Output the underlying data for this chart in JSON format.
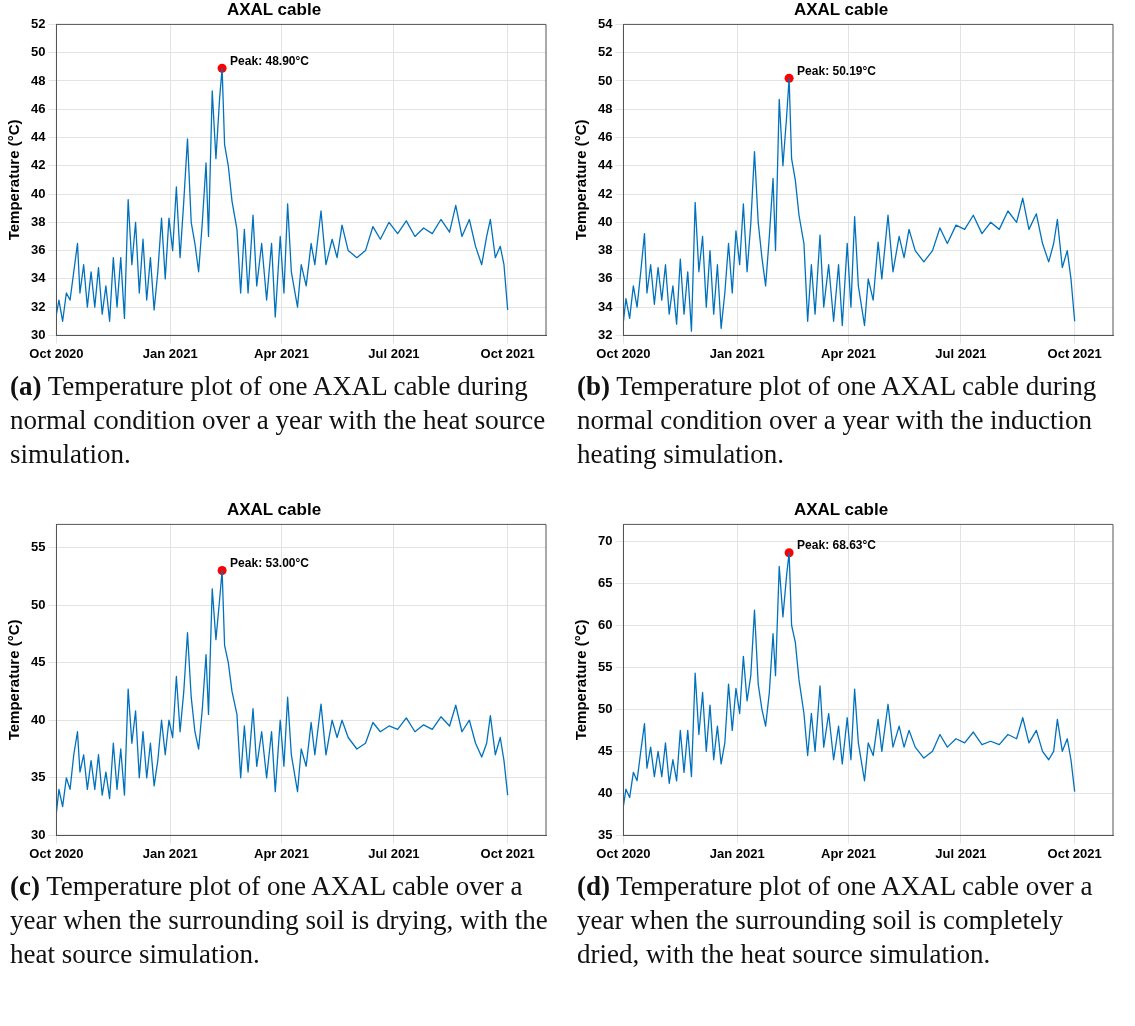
{
  "chart_data": [
    {
      "type": "line",
      "title": "AXAL cable",
      "ylabel": "Temperature (°C)",
      "grid": true,
      "legend": false,
      "xlim": [
        "2020-10-01",
        "2021-11-01"
      ],
      "xticks": [
        {
          "value": "2020-10-01",
          "label": "Oct 2020"
        },
        {
          "value": "2021-01-01",
          "label": "Jan 2021"
        },
        {
          "value": "2021-04-01",
          "label": "Apr 2021"
        },
        {
          "value": "2021-07-01",
          "label": "Jul 2021"
        },
        {
          "value": "2021-10-01",
          "label": "Oct 2021"
        }
      ],
      "ylim": [
        30,
        52
      ],
      "yticks": [
        30,
        32,
        34,
        36,
        38,
        40,
        42,
        44,
        46,
        48,
        50,
        52
      ],
      "x": [
        "2020-10-01",
        "2020-10-03",
        "2020-10-06",
        "2020-10-09",
        "2020-10-12",
        "2020-10-15",
        "2020-10-18",
        "2020-10-20",
        "2020-10-23",
        "2020-10-26",
        "2020-10-29",
        "2020-11-01",
        "2020-11-04",
        "2020-11-07",
        "2020-11-10",
        "2020-11-13",
        "2020-11-16",
        "2020-11-19",
        "2020-11-22",
        "2020-11-25",
        "2020-11-28",
        "2020-12-01",
        "2020-12-04",
        "2020-12-07",
        "2020-12-10",
        "2020-12-13",
        "2020-12-16",
        "2020-12-19",
        "2020-12-22",
        "2020-12-25",
        "2020-12-28",
        "2020-12-31",
        "2021-01-03",
        "2021-01-06",
        "2021-01-09",
        "2021-01-12",
        "2021-01-15",
        "2021-01-18",
        "2021-01-21",
        "2021-01-24",
        "2021-01-27",
        "2021-01-30",
        "2021-02-01",
        "2021-02-04",
        "2021-02-07",
        "2021-02-10",
        "2021-02-12",
        "2021-02-14",
        "2021-02-17",
        "2021-02-20",
        "2021-02-24",
        "2021-02-27",
        "2021-03-02",
        "2021-03-05",
        "2021-03-09",
        "2021-03-12",
        "2021-03-16",
        "2021-03-20",
        "2021-03-24",
        "2021-03-27",
        "2021-03-31",
        "2021-04-03",
        "2021-04-06",
        "2021-04-09",
        "2021-04-14",
        "2021-04-17",
        "2021-04-21",
        "2021-04-25",
        "2021-04-28",
        "2021-05-03",
        "2021-05-07",
        "2021-05-12",
        "2021-05-16",
        "2021-05-20",
        "2021-05-25",
        "2021-06-01",
        "2021-06-08",
        "2021-06-14",
        "2021-06-20",
        "2021-06-27",
        "2021-07-04",
        "2021-07-11",
        "2021-07-18",
        "2021-07-25",
        "2021-08-01",
        "2021-08-08",
        "2021-08-15",
        "2021-08-20",
        "2021-08-25",
        "2021-08-31",
        "2021-09-05",
        "2021-09-10",
        "2021-09-14",
        "2021-09-17",
        "2021-09-21",
        "2021-09-25",
        "2021-09-28",
        "2021-10-01"
      ],
      "series": [
        {
          "type": "line",
          "marker": "none",
          "color": "#0072bd",
          "values": [
            31.5,
            32.5,
            31,
            33,
            32.5,
            34.5,
            36.5,
            33,
            35,
            32,
            34.5,
            32,
            34.8,
            31.5,
            33.5,
            31,
            35.5,
            32,
            35.5,
            31.2,
            39.6,
            35,
            38,
            33,
            36.8,
            32.5,
            35.5,
            31.8,
            34.5,
            38.3,
            34,
            38.3,
            36,
            40.5,
            35.5,
            39.5,
            43.9,
            38,
            36.5,
            34.5,
            38,
            42.2,
            37,
            47.3,
            42.5,
            46.8,
            48.9,
            43.5,
            42,
            39.5,
            37.5,
            33,
            37.5,
            33,
            38.5,
            33.5,
            36.5,
            32.5,
            36.5,
            31.3,
            37,
            33,
            39.3,
            34.5,
            32,
            35,
            33.5,
            36.5,
            35,
            38.8,
            35,
            36.8,
            35.5,
            37.8,
            36,
            35.5,
            36,
            37.7,
            36.8,
            38,
            37.2,
            38.1,
            37,
            37.6,
            37.2,
            38.2,
            37.3,
            39.2,
            37,
            38.2,
            36.3,
            35,
            37,
            38.2,
            35.5,
            36.3,
            35,
            31.8
          ]
        },
        {
          "type": "scatter",
          "marker": "circle",
          "color": "#ff0000",
          "x": [
            "2021-02-12"
          ],
          "values": [
            48.9
          ]
        }
      ],
      "annotations": [
        {
          "text": "Peak: 48.90°C",
          "x": "2021-02-12",
          "y": 48.9
        },
        "(a) Temperature plot of one AXAL cable during normal condition over a year with the heat source simulation."
      ]
    },
    {
      "type": "line",
      "title": "AXAL cable",
      "ylabel": "Temperature (°C)",
      "grid": true,
      "legend": false,
      "xlim": [
        "2020-10-01",
        "2021-11-01"
      ],
      "xticks": [
        {
          "value": "2020-10-01",
          "label": "Oct 2020"
        },
        {
          "value": "2021-01-01",
          "label": "Jan 2021"
        },
        {
          "value": "2021-04-01",
          "label": "Apr 2021"
        },
        {
          "value": "2021-07-01",
          "label": "Jul 2021"
        },
        {
          "value": "2021-10-01",
          "label": "Oct 2021"
        }
      ],
      "ylim": [
        32,
        54
      ],
      "yticks": [
        32,
        34,
        36,
        38,
        40,
        42,
        44,
        46,
        48,
        50,
        52,
        54
      ],
      "x": [
        "2020-10-01",
        "2020-10-03",
        "2020-10-06",
        "2020-10-09",
        "2020-10-12",
        "2020-10-15",
        "2020-10-18",
        "2020-10-20",
        "2020-10-23",
        "2020-10-26",
        "2020-10-29",
        "2020-11-01",
        "2020-11-04",
        "2020-11-07",
        "2020-11-10",
        "2020-11-13",
        "2020-11-16",
        "2020-11-19",
        "2020-11-22",
        "2020-11-25",
        "2020-11-28",
        "2020-12-01",
        "2020-12-04",
        "2020-12-07",
        "2020-12-10",
        "2020-12-13",
        "2020-12-16",
        "2020-12-19",
        "2020-12-22",
        "2020-12-25",
        "2020-12-28",
        "2020-12-31",
        "2021-01-03",
        "2021-01-06",
        "2021-01-09",
        "2021-01-12",
        "2021-01-15",
        "2021-01-18",
        "2021-01-21",
        "2021-01-24",
        "2021-01-27",
        "2021-01-30",
        "2021-02-01",
        "2021-02-04",
        "2021-02-07",
        "2021-02-10",
        "2021-02-12",
        "2021-02-14",
        "2021-02-17",
        "2021-02-20",
        "2021-02-24",
        "2021-02-27",
        "2021-03-02",
        "2021-03-05",
        "2021-03-09",
        "2021-03-12",
        "2021-03-16",
        "2021-03-20",
        "2021-03-24",
        "2021-03-27",
        "2021-03-31",
        "2021-04-03",
        "2021-04-06",
        "2021-04-09",
        "2021-04-14",
        "2021-04-17",
        "2021-04-21",
        "2021-04-25",
        "2021-04-28",
        "2021-05-03",
        "2021-05-07",
        "2021-05-12",
        "2021-05-16",
        "2021-05-20",
        "2021-05-25",
        "2021-06-01",
        "2021-06-08",
        "2021-06-14",
        "2021-06-20",
        "2021-06-27",
        "2021-07-04",
        "2021-07-11",
        "2021-07-18",
        "2021-07-25",
        "2021-08-01",
        "2021-08-08",
        "2021-08-15",
        "2021-08-20",
        "2021-08-25",
        "2021-08-31",
        "2021-09-05",
        "2021-09-10",
        "2021-09-14",
        "2021-09-17",
        "2021-09-21",
        "2021-09-25",
        "2021-09-28",
        "2021-10-01"
      ],
      "series": [
        {
          "type": "line",
          "marker": "none",
          "color": "#0072bd",
          "values": [
            33,
            34.6,
            33.2,
            35.5,
            34,
            36.5,
            39.2,
            35,
            37,
            34.2,
            36.8,
            34.5,
            37,
            33.5,
            35.5,
            32.8,
            37.4,
            33.5,
            36.5,
            32.3,
            41.4,
            36.5,
            39,
            34,
            38,
            33.5,
            37,
            32.5,
            35,
            38.5,
            35,
            39.4,
            37,
            41.3,
            36.5,
            39.9,
            45,
            40,
            37.5,
            35.5,
            39,
            43.1,
            38,
            48.7,
            44,
            47.5,
            50.19,
            44.5,
            43,
            40.5,
            38.5,
            33,
            37,
            33.5,
            39.1,
            34,
            37,
            33,
            37,
            32.7,
            38.5,
            34,
            40.4,
            35.5,
            32.7,
            36,
            34.5,
            38.6,
            36,
            40.5,
            36.5,
            39,
            37.5,
            39.5,
            38,
            37.2,
            38,
            39.6,
            38.5,
            39.8,
            39.5,
            40.5,
            39.2,
            40,
            39.5,
            40.8,
            40,
            41.7,
            39.5,
            40.6,
            38.5,
            37.2,
            38.5,
            40.2,
            36.8,
            38,
            36,
            33
          ]
        },
        {
          "type": "scatter",
          "marker": "circle",
          "color": "#ff0000",
          "x": [
            "2021-02-12"
          ],
          "values": [
            50.19
          ]
        }
      ],
      "annotations": [
        {
          "text": "Peak: 50.19°C",
          "x": "2021-02-12",
          "y": 50.19
        },
        "(b) Temperature plot of one AXAL cable during normal condition over a year with the induction heating simulation."
      ]
    },
    {
      "type": "line",
      "title": "AXAL cable",
      "ylabel": "Temperature (°C)",
      "grid": true,
      "legend": false,
      "xlim": [
        "2020-10-01",
        "2021-11-01"
      ],
      "xticks": [
        {
          "value": "2020-10-01",
          "label": "Oct 2020"
        },
        {
          "value": "2021-01-01",
          "label": "Jan 2021"
        },
        {
          "value": "2021-04-01",
          "label": "Apr 2021"
        },
        {
          "value": "2021-07-01",
          "label": "Jul 2021"
        },
        {
          "value": "2021-10-01",
          "label": "Oct 2021"
        }
      ],
      "ylim": [
        30,
        57
      ],
      "yticks": [
        30,
        35,
        40,
        45,
        50,
        55
      ],
      "x": [
        "2020-10-01",
        "2020-10-03",
        "2020-10-06",
        "2020-10-09",
        "2020-10-12",
        "2020-10-15",
        "2020-10-18",
        "2020-10-20",
        "2020-10-23",
        "2020-10-26",
        "2020-10-29",
        "2020-11-01",
        "2020-11-04",
        "2020-11-07",
        "2020-11-10",
        "2020-11-13",
        "2020-11-16",
        "2020-11-19",
        "2020-11-22",
        "2020-11-25",
        "2020-11-28",
        "2020-12-01",
        "2020-12-04",
        "2020-12-07",
        "2020-12-10",
        "2020-12-13",
        "2020-12-16",
        "2020-12-19",
        "2020-12-22",
        "2020-12-25",
        "2020-12-28",
        "2020-12-31",
        "2021-01-03",
        "2021-01-06",
        "2021-01-09",
        "2021-01-12",
        "2021-01-15",
        "2021-01-18",
        "2021-01-21",
        "2021-01-24",
        "2021-01-27",
        "2021-01-30",
        "2021-02-01",
        "2021-02-04",
        "2021-02-07",
        "2021-02-10",
        "2021-02-12",
        "2021-02-14",
        "2021-02-17",
        "2021-02-20",
        "2021-02-24",
        "2021-02-27",
        "2021-03-02",
        "2021-03-05",
        "2021-03-09",
        "2021-03-12",
        "2021-03-16",
        "2021-03-20",
        "2021-03-24",
        "2021-03-27",
        "2021-03-31",
        "2021-04-03",
        "2021-04-06",
        "2021-04-09",
        "2021-04-14",
        "2021-04-17",
        "2021-04-21",
        "2021-04-25",
        "2021-04-28",
        "2021-05-03",
        "2021-05-07",
        "2021-05-12",
        "2021-05-16",
        "2021-05-20",
        "2021-05-25",
        "2021-06-01",
        "2021-06-08",
        "2021-06-14",
        "2021-06-20",
        "2021-06-27",
        "2021-07-04",
        "2021-07-11",
        "2021-07-18",
        "2021-07-25",
        "2021-08-01",
        "2021-08-08",
        "2021-08-15",
        "2021-08-20",
        "2021-08-25",
        "2021-08-31",
        "2021-09-05",
        "2021-09-10",
        "2021-09-14",
        "2021-09-17",
        "2021-09-21",
        "2021-09-25",
        "2021-09-28",
        "2021-10-01"
      ],
      "series": [
        {
          "type": "line",
          "marker": "none",
          "color": "#0072bd",
          "values": [
            32,
            34,
            32.5,
            35,
            34,
            37,
            39,
            35.5,
            37,
            34,
            36.5,
            34,
            37,
            33.5,
            35.5,
            33.2,
            38,
            34,
            37.5,
            33.5,
            42.7,
            38,
            40.8,
            35,
            39,
            35,
            38,
            34.3,
            36.5,
            40,
            37,
            40,
            38.5,
            43.8,
            39,
            42.5,
            47.6,
            42,
            39,
            37.5,
            41,
            45.7,
            40.5,
            51.4,
            47,
            50.5,
            53,
            46.5,
            45,
            42.5,
            40.5,
            35,
            39.5,
            35.5,
            41,
            36,
            39,
            35,
            39,
            33.8,
            40,
            36,
            42,
            37,
            33.8,
            37.5,
            36,
            39.8,
            37,
            41.4,
            37,
            40,
            38.5,
            40,
            38.5,
            37.5,
            38,
            39.8,
            39,
            39.5,
            39.2,
            40.2,
            39,
            39.6,
            39.2,
            40.3,
            39.5,
            41.3,
            39,
            40,
            38,
            36.8,
            38,
            40.4,
            37,
            38.5,
            36.5,
            33.5
          ]
        },
        {
          "type": "scatter",
          "marker": "circle",
          "color": "#ff0000",
          "x": [
            "2021-02-12"
          ],
          "values": [
            53
          ]
        }
      ],
      "annotations": [
        {
          "text": "Peak: 53.00°C",
          "x": "2021-02-12",
          "y": 53
        },
        "(c) Temperature plot of one AXAL cable over a year when the surrounding soil is drying, with the heat source simulation."
      ]
    },
    {
      "type": "line",
      "title": "AXAL cable",
      "ylabel": "Temperature (°C)",
      "grid": true,
      "legend": false,
      "xlim": [
        "2020-10-01",
        "2021-11-01"
      ],
      "xticks": [
        {
          "value": "2020-10-01",
          "label": "Oct 2020"
        },
        {
          "value": "2021-01-01",
          "label": "Jan 2021"
        },
        {
          "value": "2021-04-01",
          "label": "Apr 2021"
        },
        {
          "value": "2021-07-01",
          "label": "Jul 2021"
        },
        {
          "value": "2021-10-01",
          "label": "Oct 2021"
        }
      ],
      "ylim": [
        35,
        72
      ],
      "yticks": [
        35,
        40,
        45,
        50,
        55,
        60,
        65,
        70
      ],
      "x": [
        "2020-10-01",
        "2020-10-03",
        "2020-10-06",
        "2020-10-09",
        "2020-10-12",
        "2020-10-15",
        "2020-10-18",
        "2020-10-20",
        "2020-10-23",
        "2020-10-26",
        "2020-10-29",
        "2020-11-01",
        "2020-11-04",
        "2020-11-07",
        "2020-11-10",
        "2020-11-13",
        "2020-11-16",
        "2020-11-19",
        "2020-11-22",
        "2020-11-25",
        "2020-11-28",
        "2020-12-01",
        "2020-12-04",
        "2020-12-07",
        "2020-12-10",
        "2020-12-13",
        "2020-12-16",
        "2020-12-19",
        "2020-12-22",
        "2020-12-25",
        "2020-12-28",
        "2020-12-31",
        "2021-01-03",
        "2021-01-06",
        "2021-01-09",
        "2021-01-12",
        "2021-01-15",
        "2021-01-18",
        "2021-01-21",
        "2021-01-24",
        "2021-01-27",
        "2021-01-30",
        "2021-02-01",
        "2021-02-04",
        "2021-02-07",
        "2021-02-10",
        "2021-02-12",
        "2021-02-14",
        "2021-02-17",
        "2021-02-20",
        "2021-02-24",
        "2021-02-27",
        "2021-03-02",
        "2021-03-05",
        "2021-03-09",
        "2021-03-12",
        "2021-03-16",
        "2021-03-20",
        "2021-03-24",
        "2021-03-27",
        "2021-03-31",
        "2021-04-03",
        "2021-04-06",
        "2021-04-09",
        "2021-04-14",
        "2021-04-17",
        "2021-04-21",
        "2021-04-25",
        "2021-04-28",
        "2021-05-03",
        "2021-05-07",
        "2021-05-12",
        "2021-05-16",
        "2021-05-20",
        "2021-05-25",
        "2021-06-01",
        "2021-06-08",
        "2021-06-14",
        "2021-06-20",
        "2021-06-27",
        "2021-07-04",
        "2021-07-11",
        "2021-07-18",
        "2021-07-25",
        "2021-08-01",
        "2021-08-08",
        "2021-08-15",
        "2021-08-20",
        "2021-08-25",
        "2021-08-31",
        "2021-09-05",
        "2021-09-10",
        "2021-09-14",
        "2021-09-17",
        "2021-09-21",
        "2021-09-25",
        "2021-09-28",
        "2021-10-01"
      ],
      "series": [
        {
          "type": "line",
          "marker": "none",
          "color": "#0072bd",
          "values": [
            38.5,
            40.5,
            39.5,
            42.5,
            41.5,
            45,
            48.3,
            43,
            45.5,
            42,
            45,
            42,
            46,
            41.2,
            44,
            41.5,
            47.5,
            42.5,
            47.5,
            42,
            54.3,
            47,
            52,
            45,
            50.5,
            44,
            48,
            43.5,
            46,
            53,
            47.5,
            52.5,
            49.5,
            56.3,
            51,
            54,
            61.8,
            53,
            50,
            48,
            52,
            59,
            54,
            67,
            61,
            66,
            68.63,
            60,
            58,
            53.5,
            49.5,
            44.5,
            49.5,
            45,
            52.8,
            45.5,
            49.5,
            44,
            48,
            43.5,
            49,
            44,
            52.4,
            46,
            41.5,
            46,
            44.5,
            48.8,
            45,
            50.6,
            45.5,
            48,
            45.5,
            47.5,
            45.5,
            44.2,
            45,
            47,
            45.5,
            46.5,
            46,
            47.3,
            45.8,
            46.2,
            45.8,
            47,
            46.5,
            49,
            46,
            47.5,
            45,
            44,
            45,
            48.8,
            45,
            46.5,
            44,
            40.2
          ]
        },
        {
          "type": "scatter",
          "marker": "circle",
          "color": "#ff0000",
          "x": [
            "2021-02-12"
          ],
          "values": [
            68.63
          ]
        }
      ],
      "annotations": [
        {
          "text": "Peak: 68.63°C",
          "x": "2021-02-12",
          "y": 68.63
        },
        "(d) Temperature plot of one AXAL cable over a year when the surrounding soil is completely dried, with the heat source simulation."
      ]
    }
  ]
}
